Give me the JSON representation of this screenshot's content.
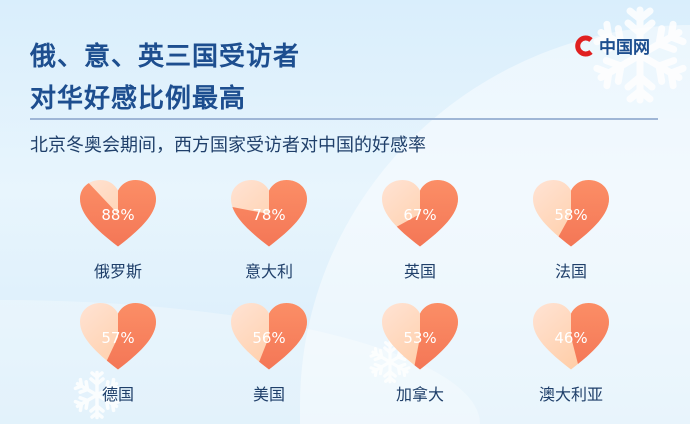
{
  "title": [
    "俄、意、英三国受访者",
    "对华好感比例最高"
  ],
  "subtitle": "北京冬奥会期间，西方国家受访者对中国的好感率",
  "logo": "中国网",
  "colors": {
    "dark": "#f06a4e",
    "light": "#ffd9b8",
    "title": "#1d4e8f"
  },
  "chart_data": {
    "type": "pie",
    "title": "北京冬奥会期间，西方国家受访者对中国的好感率",
    "categories": [
      "俄罗斯",
      "意大利",
      "英国",
      "法国",
      "德国",
      "美国",
      "加拿大",
      "澳大利亚"
    ],
    "values": [
      88,
      78,
      67,
      58,
      57,
      56,
      53,
      46
    ],
    "labels": [
      "88%",
      "78%",
      "67%",
      "58%",
      "57%",
      "56%",
      "53%",
      "46%"
    ]
  }
}
